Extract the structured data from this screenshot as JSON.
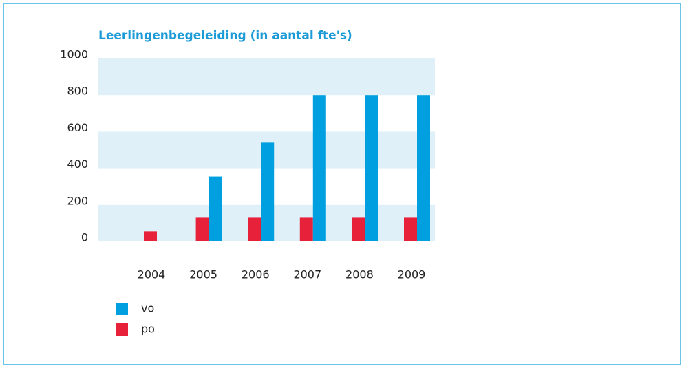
{
  "chart_data": {
    "type": "bar",
    "title": "Leerlingenbegeleiding (in aantal fte's)",
    "categories": [
      "2004",
      "2005",
      "2006",
      "2007",
      "2008",
      "2009"
    ],
    "series": [
      {
        "name": "po",
        "color": "#e8213b",
        "values": [
          55,
          130,
          130,
          130,
          130,
          130
        ]
      },
      {
        "name": "vo",
        "color": "#009fdf",
        "values": [
          null,
          355,
          540,
          800,
          800,
          800
        ]
      }
    ],
    "legend_order": [
      "vo",
      "po"
    ],
    "ylim": [
      0,
      1000
    ],
    "yticks": [
      0,
      200,
      400,
      600,
      800,
      1000
    ],
    "bands": true,
    "band_color": "#dff0f8",
    "legend": "bottom-left"
  }
}
